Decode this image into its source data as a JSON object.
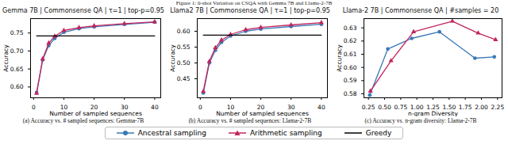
{
  "figure_caption": "Figure 1: 0-shot Variation on CSQA with Gemma 7B and Llama-2-7B",
  "chart_data": [
    {
      "type": "line",
      "title": "Gemma 7B | Commonsense QA | τ=1 | top-p=0.95",
      "subtitle": "(a) Accuracy vs. # sampled sequences: Gemma-7B",
      "x_label": "Number of sampled sequences",
      "y_label": "Accuracy",
      "xlim": [
        -1,
        42
      ],
      "xticks": [
        0,
        10,
        20,
        30,
        40
      ],
      "ylim": [
        0.57,
        0.79
      ],
      "yticks": [
        {
          "value": 0.6,
          "label": "0.60"
        },
        {
          "value": 0.65,
          "label": "0.65"
        },
        {
          "value": 0.7,
          "label": "0.70"
        },
        {
          "value": 0.75,
          "label": "0.75"
        }
      ],
      "grid": false,
      "legend": "bottom",
      "series": [
        {
          "name": "Ancestral sampling",
          "color": "#3a78b5",
          "marker": "circle",
          "line_style": "solid",
          "x": [
            1,
            3,
            5,
            7,
            10,
            15,
            20,
            30,
            40
          ],
          "values": [
            0.585,
            0.675,
            0.715,
            0.735,
            0.752,
            0.762,
            0.767,
            0.774,
            0.78
          ]
        },
        {
          "name": "Arithmetic sampling",
          "color": "#c2245e",
          "marker": "triangle",
          "line_style": "solid",
          "x": [
            1,
            3,
            5,
            7,
            10,
            15,
            20,
            30,
            40
          ],
          "values": [
            0.582,
            0.678,
            0.722,
            0.741,
            0.757,
            0.765,
            0.77,
            0.776,
            0.781
          ]
        },
        {
          "name": "Greedy",
          "color": "#000000",
          "line_style": "solid",
          "x": [
            1,
            40
          ],
          "values": [
            0.742,
            0.742
          ]
        }
      ]
    },
    {
      "type": "line",
      "title": "Llama2 7B | Commonsense QA | τ=1 | top-p=0.95",
      "subtitle": "(b) Accuracy vs. # sampled sequences: Llama-2-7B",
      "x_label": "Number of sampled sequences",
      "y_label": "Accuracy",
      "xlim": [
        -1,
        42
      ],
      "xticks": [
        0,
        10,
        20,
        30,
        40
      ],
      "ylim": [
        0.39,
        0.64
      ],
      "yticks": [
        0.45,
        {
          "value": 0.5,
          "label": "0.50"
        },
        0.55,
        {
          "value": 0.6,
          "label": "0.60"
        }
      ],
      "grid": false,
      "series": [
        {
          "name": "Ancestral sampling",
          "color": "#3a78b5",
          "marker": "circle",
          "line_style": "solid",
          "x": [
            1,
            3,
            5,
            7,
            10,
            15,
            20,
            30,
            40
          ],
          "values": [
            0.405,
            0.5,
            0.54,
            0.565,
            0.585,
            0.6,
            0.607,
            0.615,
            0.622
          ]
        },
        {
          "name": "Arithmetic sampling",
          "color": "#c2245e",
          "marker": "triangle",
          "line_style": "solid",
          "x": [
            1,
            3,
            5,
            7,
            10,
            15,
            20,
            30,
            40
          ],
          "values": [
            0.41,
            0.505,
            0.548,
            0.572,
            0.59,
            0.605,
            0.612,
            0.62,
            0.627
          ]
        },
        {
          "name": "Greedy",
          "color": "#000000",
          "line_style": "solid",
          "x": [
            1,
            40
          ],
          "values": [
            0.588,
            0.588
          ]
        }
      ]
    },
    {
      "type": "line",
      "title": "Llama-2 7B | Commonsense QA | #samples = 20",
      "subtitle": "(c) Accuracy vs. n-gram diversity: Llama-2-7B",
      "x_label": "n-gram Diversity",
      "y_label": "Accuracy",
      "xlim": [
        0.18,
        2.32
      ],
      "xticks": [
        0.25,
        {
          "value": 0.5,
          "label": "0.50"
        },
        0.75,
        {
          "value": 1,
          "label": "1.00"
        },
        1.25,
        {
          "value": 1.5,
          "label": "1.50"
        },
        1.75,
        {
          "value": 2,
          "label": "2.00"
        },
        2.25
      ],
      "ylim": [
        0.577,
        0.637
      ],
      "yticks": [
        0.58,
        0.59,
        {
          "value": 0.6,
          "label": "0.60"
        },
        0.61,
        0.62,
        0.63
      ],
      "grid": false,
      "series": [
        {
          "name": "Ancestral sampling",
          "color": "#3a78b5",
          "marker": "circle",
          "line_style": "solid",
          "x": [
            0.27,
            0.55,
            0.92,
            1.35,
            1.9,
            2.2
          ],
          "values": [
            0.579,
            0.614,
            0.622,
            0.627,
            0.607,
            0.608
          ]
        },
        {
          "name": "Arithmetic sampling",
          "color": "#c2245e",
          "marker": "triangle",
          "line_style": "solid",
          "x": [
            0.28,
            0.6,
            0.95,
            1.55,
            1.95,
            2.22
          ],
          "values": [
            0.582,
            0.605,
            0.627,
            0.635,
            0.626,
            0.621
          ]
        }
      ]
    }
  ]
}
